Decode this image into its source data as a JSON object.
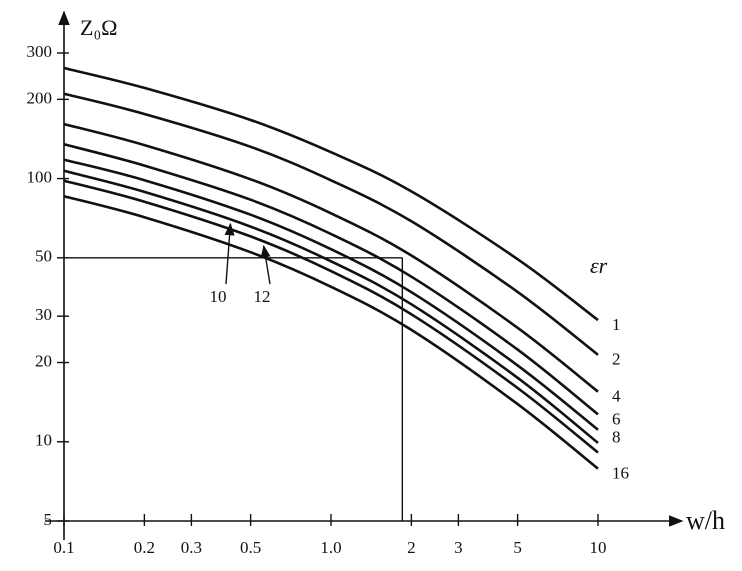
{
  "chart_data": {
    "type": "line",
    "y_label": "Z₀Ω",
    "x_label": "w/h",
    "legend_title": "εr",
    "log_x": true,
    "log_y": true,
    "color": "#111111",
    "x": [
      0.1,
      0.2,
      0.5,
      1,
      2,
      5,
      10
    ],
    "series": [
      {
        "name": "1",
        "values": [
          263,
          221,
          167,
          126,
          89.4,
          49.4,
          29.0
        ]
      },
      {
        "name": "2",
        "values": [
          210,
          176,
          132,
          98.5,
          68.8,
          37.1,
          21.4
        ]
      },
      {
        "name": "4",
        "values": [
          161,
          134,
          99.4,
          73.8,
          51.0,
          27.1,
          15.5
        ]
      },
      {
        "name": "6",
        "values": [
          135,
          112,
          83.1,
          61.6,
          42.4,
          22.4,
          12.7
        ]
      },
      {
        "name": "8",
        "values": [
          118,
          98.6,
          72.9,
          53.9,
          37.0,
          19.5,
          11.1
        ]
      },
      {
        "name": "10",
        "values": [
          107,
          89.0,
          65.7,
          48.5,
          33.3,
          17.5,
          9.9
        ]
      },
      {
        "name": "12",
        "values": [
          98.2,
          81.7,
          60.3,
          44.5,
          30.5,
          16.0,
          9.1
        ]
      },
      {
        "name": "16",
        "values": [
          85.7,
          71.3,
          52.5,
          38.8,
          26.6,
          13.9,
          7.9
        ]
      }
    ],
    "reference": {
      "x": 1.85,
      "y": 50
    },
    "xlim": [
      0.1,
      10
    ],
    "ylim": [
      5,
      300
    ],
    "xticks": [
      0.1,
      0.2,
      0.3,
      0.5,
      {
        "value": 1,
        "label": "1.0"
      },
      2,
      3,
      5,
      10
    ],
    "yticks": [
      5,
      10,
      20,
      30,
      50,
      100,
      200,
      300
    ]
  }
}
